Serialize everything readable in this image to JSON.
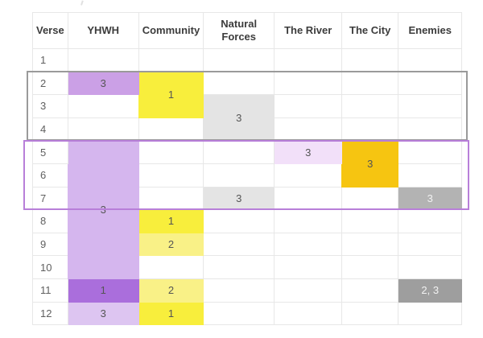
{
  "colors": {
    "purple_strong": "#cba0e6",
    "purple_span": "#d5b6ee",
    "purple_dark": "#aa6edc",
    "purple_pale": "#ddc5f1",
    "yellow_bright": "#f8ee3c",
    "yellow_light": "#f9f187",
    "gray_cell": "#e4e4e4",
    "lavender": "#f2e0f9",
    "amber": "#f6c511",
    "gray_medium": "#b3b3b3",
    "gray_dark": "#9e9e9e",
    "grid": "#e7e7e7",
    "outline_gray": "#9a9a9a",
    "outline_purple": "#b87fd9",
    "text_header": "#3c3c3c",
    "text_cell": "#555555",
    "text_light": "#f2f2f2"
  },
  "chart_data": {
    "type": "table",
    "columns": [
      "Verse",
      "YHWH",
      "Community",
      "Natural Forces",
      "The River",
      "The City",
      "Enemies"
    ],
    "verses": [
      1,
      2,
      3,
      4,
      5,
      6,
      7,
      8,
      9,
      10,
      11,
      12
    ],
    "highlighted_cells": [
      {
        "column": "YHWH",
        "verses": [
          2
        ],
        "value": "3",
        "color_key": "purple_strong",
        "text_style": "dark"
      },
      {
        "column": "Community",
        "verses": [
          2,
          3
        ],
        "value": "1",
        "color_key": "yellow_bright",
        "text_style": "dark"
      },
      {
        "column": "Natural Forces",
        "verses": [
          3,
          4
        ],
        "value": "3",
        "color_key": "gray_cell",
        "text_style": "dark"
      },
      {
        "column": "YHWH",
        "verses": [
          5,
          6,
          7,
          8,
          9,
          10
        ],
        "value": "3",
        "color_key": "purple_span",
        "text_style": "dark"
      },
      {
        "column": "The River",
        "verses": [
          5
        ],
        "value": "3",
        "color_key": "lavender",
        "text_style": "dark"
      },
      {
        "column": "The City",
        "verses": [
          5,
          6
        ],
        "value": "3",
        "color_key": "amber",
        "text_style": "dark"
      },
      {
        "column": "Natural Forces",
        "verses": [
          7
        ],
        "value": "3",
        "color_key": "gray_cell",
        "text_style": "dark"
      },
      {
        "column": "Enemies",
        "verses": [
          7
        ],
        "value": "3",
        "color_key": "gray_medium",
        "text_style": "light"
      },
      {
        "column": "Community",
        "verses": [
          8
        ],
        "value": "1",
        "color_key": "yellow_bright",
        "text_style": "dark"
      },
      {
        "column": "Community",
        "verses": [
          9
        ],
        "value": "2",
        "color_key": "yellow_light",
        "text_style": "dark"
      },
      {
        "column": "YHWH",
        "verses": [
          11
        ],
        "value": "1",
        "color_key": "purple_dark",
        "text_style": "dark"
      },
      {
        "column": "Community",
        "verses": [
          11
        ],
        "value": "2",
        "color_key": "yellow_light",
        "text_style": "dark"
      },
      {
        "column": "Enemies",
        "verses": [
          11
        ],
        "value": "2, 3",
        "color_key": "gray_dark",
        "text_style": "light"
      },
      {
        "column": "YHWH",
        "verses": [
          12
        ],
        "value": "3",
        "color_key": "purple_pale",
        "text_style": "dark"
      },
      {
        "column": "Community",
        "verses": [
          12
        ],
        "value": "1",
        "color_key": "yellow_bright",
        "text_style": "dark"
      }
    ],
    "annotations": [
      {
        "name": "section-box-1",
        "verses": [
          2,
          3,
          4
        ],
        "border_color_key": "outline_gray"
      },
      {
        "name": "section-box-2",
        "verses": [
          5,
          6,
          7
        ],
        "border_color_key": "outline_purple"
      }
    ]
  }
}
